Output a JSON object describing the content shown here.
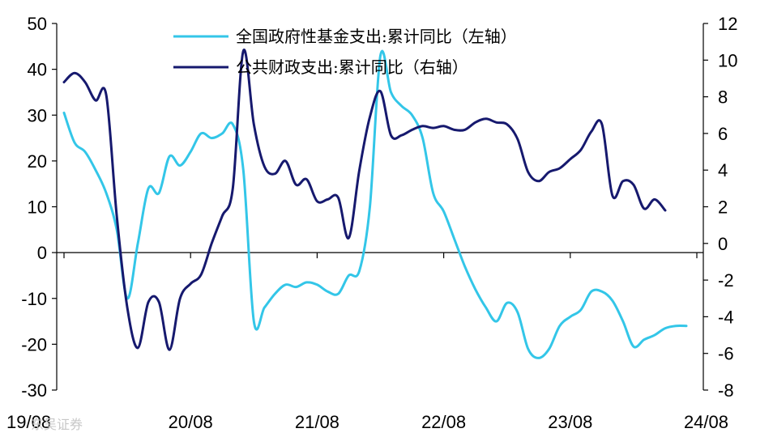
{
  "chart_data": {
    "type": "line",
    "x_ticks": [
      "19/08",
      "20/08",
      "21/08",
      "22/08",
      "23/08",
      "24/08"
    ],
    "y_left": {
      "min": -30,
      "max": 50,
      "ticks": [
        "50",
        "40",
        "30",
        "20",
        "10",
        "0",
        "-10",
        "-20",
        "-30"
      ]
    },
    "y_right": {
      "min": -8,
      "max": 12,
      "ticks": [
        "12",
        "10",
        "8",
        "6",
        "4",
        "2",
        "0",
        "-2",
        "-4",
        "-6",
        "-8"
      ]
    },
    "legend": [
      {
        "label": "全国政府性基金支出:累计同比（左轴）",
        "color": "#33C6E8"
      },
      {
        "label": "公共财政支出:累计同比（右轴）",
        "color": "#16196E"
      }
    ],
    "series": [
      {
        "name": "全国政府性基金支出:累计同比（左轴）",
        "axis": "left",
        "color": "#33C6E8",
        "points": [
          [
            "2019-08",
            30.5
          ],
          [
            "2019-09",
            24
          ],
          [
            "2019-10",
            22
          ],
          [
            "2019-11",
            18
          ],
          [
            "2019-12",
            13
          ],
          [
            "2020-01",
            5
          ],
          [
            "2020-02",
            -10
          ],
          [
            "2020-03",
            2
          ],
          [
            "2020-04",
            14
          ],
          [
            "2020-05",
            13
          ],
          [
            "2020-06",
            21
          ],
          [
            "2020-07",
            19
          ],
          [
            "2020-08",
            22
          ],
          [
            "2020-09",
            26
          ],
          [
            "2020-10",
            25
          ],
          [
            "2020-11",
            26
          ],
          [
            "2020-12",
            28
          ],
          [
            "2021-01",
            18
          ],
          [
            "2021-02",
            -15
          ],
          [
            "2021-03",
            -12
          ],
          [
            "2021-04",
            -9
          ],
          [
            "2021-05",
            -7
          ],
          [
            "2021-06",
            -7.5
          ],
          [
            "2021-07",
            -6.5
          ],
          [
            "2021-08",
            -7
          ],
          [
            "2021-09",
            -8.5
          ],
          [
            "2021-10",
            -9
          ],
          [
            "2021-11",
            -5
          ],
          [
            "2021-12",
            -4
          ],
          [
            "2022-01",
            10
          ],
          [
            "2022-02",
            43
          ],
          [
            "2022-03",
            35
          ],
          [
            "2022-04",
            32
          ],
          [
            "2022-05",
            30
          ],
          [
            "2022-06",
            25
          ],
          [
            "2022-07",
            13
          ],
          [
            "2022-08",
            9
          ],
          [
            "2022-09",
            3
          ],
          [
            "2022-10",
            -3
          ],
          [
            "2022-11",
            -8
          ],
          [
            "2022-12",
            -12
          ],
          [
            "2023-01",
            -15
          ],
          [
            "2023-02",
            -11
          ],
          [
            "2023-03",
            -13
          ],
          [
            "2023-04",
            -21
          ],
          [
            "2023-05",
            -23
          ],
          [
            "2023-06",
            -21
          ],
          [
            "2023-07",
            -16
          ],
          [
            "2023-08",
            -14
          ],
          [
            "2023-09",
            -12.5
          ],
          [
            "2023-10",
            -8.5
          ],
          [
            "2023-11",
            -8.5
          ],
          [
            "2023-12",
            -10.5
          ],
          [
            "2024-01",
            -15
          ],
          [
            "2024-02",
            -20.5
          ],
          [
            "2024-03",
            -19
          ],
          [
            "2024-04",
            -18
          ],
          [
            "2024-05",
            -16.5
          ],
          [
            "2024-06",
            -16
          ],
          [
            "2024-07",
            -16
          ]
        ]
      },
      {
        "name": "公共财政支出:累计同比（右轴）",
        "axis": "right",
        "color": "#16196E",
        "points": [
          [
            "2019-08",
            8.8
          ],
          [
            "2019-09",
            9.3
          ],
          [
            "2019-10",
            8.8
          ],
          [
            "2019-11",
            7.8
          ],
          [
            "2019-12",
            8.1
          ],
          [
            "2020-01",
            1.5
          ],
          [
            "2020-02",
            -3.5
          ],
          [
            "2020-03",
            -5.7
          ],
          [
            "2020-04",
            -3.2
          ],
          [
            "2020-05",
            -3.2
          ],
          [
            "2020-06",
            -5.8
          ],
          [
            "2020-07",
            -3.0
          ],
          [
            "2020-08",
            -2.2
          ],
          [
            "2020-09",
            -1.7
          ],
          [
            "2020-10",
            0
          ],
          [
            "2020-11",
            1.5
          ],
          [
            "2020-12",
            3.0
          ],
          [
            "2021-01",
            10.5
          ],
          [
            "2021-02",
            6.5
          ],
          [
            "2021-03",
            4.2
          ],
          [
            "2021-04",
            3.8
          ],
          [
            "2021-05",
            4.5
          ],
          [
            "2021-06",
            3.2
          ],
          [
            "2021-07",
            3.5
          ],
          [
            "2021-08",
            2.3
          ],
          [
            "2021-09",
            2.4
          ],
          [
            "2021-10",
            2.5
          ],
          [
            "2021-11",
            0.3
          ],
          [
            "2021-12",
            4.0
          ],
          [
            "2022-01",
            6.9
          ],
          [
            "2022-02",
            8.3
          ],
          [
            "2022-03",
            5.9
          ],
          [
            "2022-04",
            5.9
          ],
          [
            "2022-05",
            6.2
          ],
          [
            "2022-06",
            6.4
          ],
          [
            "2022-07",
            6.3
          ],
          [
            "2022-08",
            6.4
          ],
          [
            "2022-09",
            6.2
          ],
          [
            "2022-10",
            6.2
          ],
          [
            "2022-11",
            6.6
          ],
          [
            "2022-12",
            6.8
          ],
          [
            "2023-01",
            6.6
          ],
          [
            "2023-02",
            6.5
          ],
          [
            "2023-03",
            5.7
          ],
          [
            "2023-04",
            3.9
          ],
          [
            "2023-05",
            3.4
          ],
          [
            "2023-06",
            3.9
          ],
          [
            "2023-07",
            4.1
          ],
          [
            "2023-08",
            4.6
          ],
          [
            "2023-09",
            5.1
          ],
          [
            "2023-10",
            6.1
          ],
          [
            "2023-11",
            6.5
          ],
          [
            "2023-12",
            2.6
          ],
          [
            "2024-01",
            3.4
          ],
          [
            "2024-02",
            3.2
          ],
          [
            "2024-03",
            1.9
          ],
          [
            "2024-04",
            2.4
          ],
          [
            "2024-05",
            1.8
          ]
        ]
      }
    ],
    "grid": false,
    "legend_position": "top-center"
  },
  "watermark": "东吴证券"
}
